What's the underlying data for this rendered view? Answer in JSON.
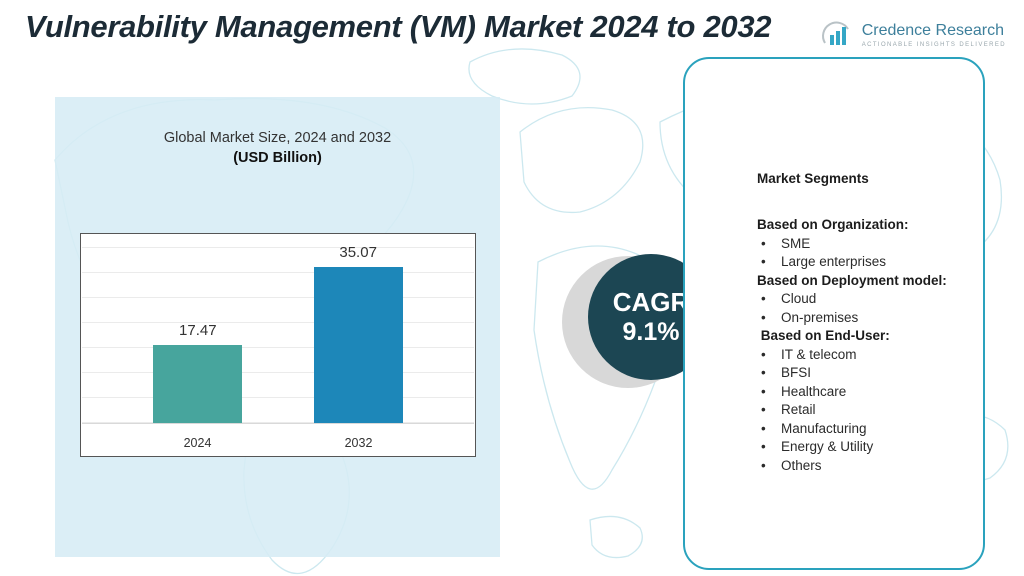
{
  "page": {
    "title": "Vulnerability Management (VM) Market 2024 to 2032"
  },
  "logo": {
    "name": "Credence Research",
    "tagline": "Actionable Insights Delivered"
  },
  "chart_data": {
    "type": "bar",
    "title": "Global Market Size,  2024 and 2032",
    "subtitle": "(USD Billion)",
    "categories": [
      "2024",
      "2032"
    ],
    "values": [
      17.47,
      35.07
    ],
    "value_labels": [
      "17.47",
      "35.07"
    ],
    "bar_colors": [
      "#47a59d",
      "#1d87b9"
    ],
    "ylim": [
      0,
      40
    ],
    "grid": true,
    "legend": "none"
  },
  "cagr": {
    "label": "CAGR",
    "value": "9.1%",
    "color": "#1c4653"
  },
  "segments": {
    "title": "Market Segments",
    "groups": [
      {
        "heading": "Based on Organization:",
        "items": [
          "SME",
          "Large enterprises"
        ]
      },
      {
        "heading": "Based on Deployment model:",
        "items": [
          "Cloud",
          "On-premises"
        ]
      },
      {
        "heading": " Based on End-User:",
        "items": [
          "IT & telecom",
          "BFSI",
          "Healthcare",
          "Retail",
          "Manufacturing",
          "Energy & Utility",
          "Others"
        ]
      }
    ]
  }
}
